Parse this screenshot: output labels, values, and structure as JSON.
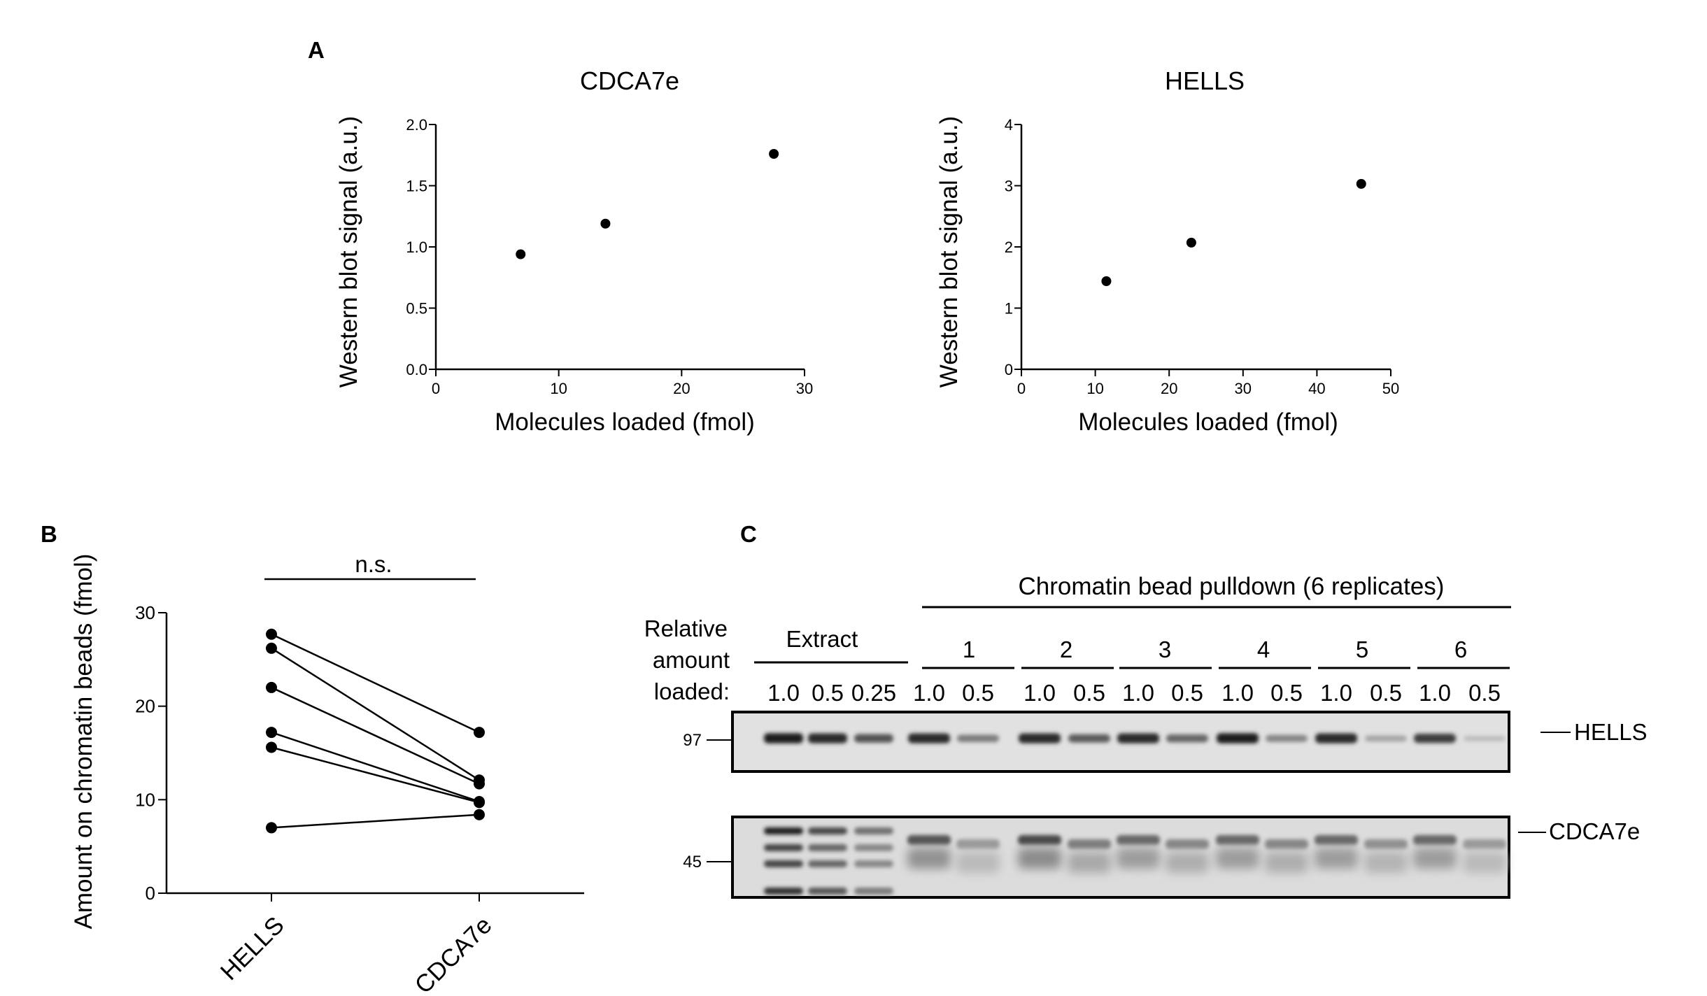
{
  "panels": {
    "a_label": "A",
    "b_label": "B",
    "c_label": "C"
  },
  "chart_data": [
    {
      "id": "A1",
      "type": "scatter",
      "title": "CDCA7e",
      "xlabel": "Molecules loaded (fmol)",
      "ylabel": "Western blot signal (a.u.)",
      "xlim": [
        0,
        30
      ],
      "ylim": [
        0,
        2.0
      ],
      "xticks": [
        0,
        10,
        20,
        30
      ],
      "yticks": [
        "0.0",
        "0.5",
        "1.0",
        "1.5",
        "2.0"
      ],
      "x": [
        6.9,
        13.8,
        27.5
      ],
      "y": [
        0.94,
        1.19,
        1.76
      ],
      "grid": false
    },
    {
      "id": "A2",
      "type": "scatter",
      "title": "HELLS",
      "xlabel": "Molecules loaded (fmol)",
      "ylabel": "Western blot signal (a.u.)",
      "xlim": [
        0,
        50
      ],
      "ylim": [
        0,
        4
      ],
      "xticks": [
        0,
        10,
        20,
        30,
        40,
        50
      ],
      "yticks": [
        "0",
        "1",
        "2",
        "3",
        "4"
      ],
      "x": [
        11.5,
        23,
        46
      ],
      "y": [
        1.44,
        2.07,
        3.03
      ],
      "grid": false
    },
    {
      "id": "B",
      "type": "line",
      "ylabel": "Amount on chromatin beads (fmol)",
      "categories": [
        "HELLS",
        "CDCA7e"
      ],
      "ylim": [
        0,
        30
      ],
      "yticks": [
        0,
        10,
        20,
        30
      ],
      "paired_values": [
        [
          27.7,
          17.2
        ],
        [
          26.2,
          12.1
        ],
        [
          22.0,
          11.7
        ],
        [
          17.2,
          9.8
        ],
        [
          15.6,
          9.7
        ],
        [
          7.0,
          8.4
        ]
      ],
      "significance": "n.s.",
      "grid": false
    }
  ],
  "blot": {
    "group_label": "Chromatin bead pulldown (6 replicates)",
    "row_label_lines": [
      "Relative",
      "amount",
      "loaded:"
    ],
    "extract_label": "Extract",
    "replicates": [
      "1",
      "2",
      "3",
      "4",
      "5",
      "6"
    ],
    "lanes": [
      "1.0",
      "0.5",
      "0.25",
      "1.0",
      "0.5",
      "1.0",
      "0.5",
      "1.0",
      "0.5",
      "1.0",
      "0.5",
      "1.0",
      "0.5",
      "1.0",
      "0.5"
    ],
    "marker_top": "97",
    "marker_bottom": "45",
    "protein_top": "HELLS",
    "protein_bottom": "CDCA7e",
    "hells_intensity": [
      0.95,
      0.9,
      0.7,
      0.9,
      0.5,
      0.9,
      0.65,
      0.9,
      0.6,
      0.95,
      0.45,
      0.9,
      0.3,
      0.8,
      0.18
    ],
    "cdca7e_intensity": [
      0.95,
      0.75,
      0.55,
      0.7,
      0.35,
      0.75,
      0.5,
      0.6,
      0.45,
      0.6,
      0.45,
      0.6,
      0.4,
      0.6,
      0.35
    ]
  }
}
